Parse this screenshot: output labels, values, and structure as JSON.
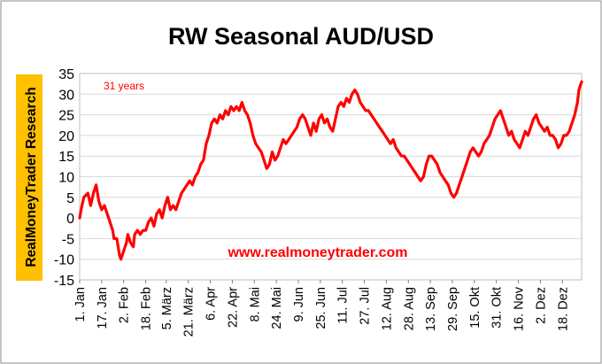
{
  "chart_data": {
    "type": "line",
    "title": "RW Seasonal AUD/USD",
    "ylabel": "RealMoneyTrader Research",
    "annotation": "31 years",
    "watermark": "www.realmoneytrader.com",
    "ylim": [
      -15,
      35
    ],
    "yticks": [
      -15,
      -10,
      -5,
      0,
      5,
      10,
      15,
      20,
      25,
      30,
      35
    ],
    "xlim": [
      1,
      366
    ],
    "xticks": [
      {
        "day": 1,
        "label": "1. Jan"
      },
      {
        "day": 17,
        "label": "17. Jan"
      },
      {
        "day": 33,
        "label": "2. Feb"
      },
      {
        "day": 49,
        "label": "18. Feb"
      },
      {
        "day": 64,
        "label": "5. März"
      },
      {
        "day": 80,
        "label": "21. März"
      },
      {
        "day": 96,
        "label": "6. Apr"
      },
      {
        "day": 112,
        "label": "22. Apr"
      },
      {
        "day": 128,
        "label": "8. Mai"
      },
      {
        "day": 144,
        "label": "24. Mai"
      },
      {
        "day": 160,
        "label": "9. Jun"
      },
      {
        "day": 176,
        "label": "25. Jun"
      },
      {
        "day": 192,
        "label": "11. Jul"
      },
      {
        "day": 208,
        "label": "27. Jul"
      },
      {
        "day": 224,
        "label": "12. Aug"
      },
      {
        "day": 240,
        "label": "28. Aug"
      },
      {
        "day": 256,
        "label": "13. Sep"
      },
      {
        "day": 272,
        "label": "29. Sep"
      },
      {
        "day": 288,
        "label": "15. Okt"
      },
      {
        "day": 304,
        "label": "31. Okt"
      },
      {
        "day": 320,
        "label": "16. Nov"
      },
      {
        "day": 336,
        "label": "2. Dez"
      },
      {
        "day": 352,
        "label": "18. Dez"
      }
    ],
    "grid": true,
    "series": [
      {
        "color": "#ff0000",
        "points": [
          [
            1,
            0
          ],
          [
            2,
            2
          ],
          [
            4,
            5
          ],
          [
            7,
            6
          ],
          [
            9,
            3
          ],
          [
            11,
            6
          ],
          [
            13,
            8
          ],
          [
            15,
            4
          ],
          [
            17,
            2
          ],
          [
            19,
            3
          ],
          [
            21,
            1
          ],
          [
            23,
            -1
          ],
          [
            25,
            -3
          ],
          [
            26,
            -5
          ],
          [
            28,
            -5
          ],
          [
            30,
            -9
          ],
          [
            31,
            -10
          ],
          [
            33,
            -8
          ],
          [
            35,
            -6
          ],
          [
            36,
            -4
          ],
          [
            38,
            -6
          ],
          [
            40,
            -7
          ],
          [
            41,
            -4
          ],
          [
            43,
            -3
          ],
          [
            45,
            -4
          ],
          [
            47,
            -3
          ],
          [
            49,
            -3
          ],
          [
            51,
            -1
          ],
          [
            53,
            0
          ],
          [
            55,
            -2
          ],
          [
            57,
            1
          ],
          [
            59,
            2
          ],
          [
            61,
            0
          ],
          [
            63,
            3
          ],
          [
            65,
            5
          ],
          [
            67,
            2
          ],
          [
            69,
            3
          ],
          [
            71,
            2
          ],
          [
            73,
            4
          ],
          [
            75,
            6
          ],
          [
            77,
            7
          ],
          [
            79,
            8
          ],
          [
            81,
            9
          ],
          [
            83,
            8
          ],
          [
            85,
            10
          ],
          [
            87,
            11
          ],
          [
            89,
            13
          ],
          [
            91,
            14
          ],
          [
            93,
            18
          ],
          [
            95,
            20
          ],
          [
            97,
            23
          ],
          [
            99,
            24
          ],
          [
            101,
            23
          ],
          [
            103,
            25
          ],
          [
            105,
            24
          ],
          [
            107,
            26
          ],
          [
            109,
            25
          ],
          [
            111,
            27
          ],
          [
            113,
            26
          ],
          [
            115,
            27
          ],
          [
            117,
            26
          ],
          [
            119,
            28
          ],
          [
            121,
            26
          ],
          [
            123,
            25
          ],
          [
            125,
            23
          ],
          [
            127,
            20
          ],
          [
            129,
            18
          ],
          [
            131,
            17
          ],
          [
            133,
            16
          ],
          [
            135,
            14
          ],
          [
            137,
            12
          ],
          [
            139,
            13
          ],
          [
            141,
            16
          ],
          [
            143,
            14
          ],
          [
            145,
            15
          ],
          [
            147,
            17
          ],
          [
            149,
            19
          ],
          [
            151,
            18
          ],
          [
            153,
            19
          ],
          [
            155,
            20
          ],
          [
            157,
            21
          ],
          [
            159,
            22
          ],
          [
            161,
            24
          ],
          [
            163,
            25
          ],
          [
            165,
            24
          ],
          [
            167,
            22
          ],
          [
            169,
            20
          ],
          [
            171,
            23
          ],
          [
            173,
            21
          ],
          [
            175,
            24
          ],
          [
            177,
            25
          ],
          [
            179,
            23
          ],
          [
            181,
            24
          ],
          [
            183,
            22
          ],
          [
            185,
            21
          ],
          [
            187,
            24
          ],
          [
            189,
            27
          ],
          [
            191,
            28
          ],
          [
            193,
            27
          ],
          [
            195,
            29
          ],
          [
            197,
            28
          ],
          [
            199,
            30
          ],
          [
            201,
            31
          ],
          [
            203,
            30
          ],
          [
            205,
            28
          ],
          [
            207,
            27
          ],
          [
            209,
            26
          ],
          [
            211,
            26
          ],
          [
            213,
            25
          ],
          [
            215,
            24
          ],
          [
            217,
            23
          ],
          [
            219,
            22
          ],
          [
            221,
            21
          ],
          [
            223,
            20
          ],
          [
            225,
            19
          ],
          [
            227,
            18
          ],
          [
            229,
            19
          ],
          [
            231,
            17
          ],
          [
            233,
            16
          ],
          [
            235,
            15
          ],
          [
            237,
            15
          ],
          [
            239,
            14
          ],
          [
            241,
            13
          ],
          [
            243,
            12
          ],
          [
            245,
            11
          ],
          [
            247,
            10
          ],
          [
            249,
            9
          ],
          [
            251,
            10
          ],
          [
            253,
            13
          ],
          [
            255,
            15
          ],
          [
            257,
            15
          ],
          [
            259,
            14
          ],
          [
            261,
            13
          ],
          [
            263,
            11
          ],
          [
            265,
            10
          ],
          [
            267,
            9
          ],
          [
            269,
            8
          ],
          [
            271,
            6
          ],
          [
            273,
            5
          ],
          [
            275,
            6
          ],
          [
            277,
            8
          ],
          [
            279,
            10
          ],
          [
            281,
            12
          ],
          [
            283,
            14
          ],
          [
            285,
            16
          ],
          [
            287,
            17
          ],
          [
            289,
            16
          ],
          [
            291,
            15
          ],
          [
            293,
            16
          ],
          [
            295,
            18
          ],
          [
            297,
            19
          ],
          [
            299,
            20
          ],
          [
            301,
            22
          ],
          [
            303,
            24
          ],
          [
            305,
            25
          ],
          [
            307,
            26
          ],
          [
            309,
            24
          ],
          [
            311,
            22
          ],
          [
            313,
            20
          ],
          [
            315,
            21
          ],
          [
            317,
            19
          ],
          [
            319,
            18
          ],
          [
            321,
            17
          ],
          [
            323,
            19
          ],
          [
            325,
            21
          ],
          [
            327,
            20
          ],
          [
            329,
            22
          ],
          [
            331,
            24
          ],
          [
            333,
            25
          ],
          [
            335,
            23
          ],
          [
            337,
            22
          ],
          [
            339,
            21
          ],
          [
            341,
            22
          ],
          [
            343,
            20
          ],
          [
            345,
            20
          ],
          [
            347,
            19
          ],
          [
            349,
            17
          ],
          [
            351,
            18
          ],
          [
            353,
            20
          ],
          [
            355,
            20
          ],
          [
            357,
            21
          ],
          [
            359,
            23
          ],
          [
            361,
            25
          ],
          [
            363,
            28
          ],
          [
            364,
            31
          ],
          [
            365,
            32
          ],
          [
            366,
            33
          ]
        ]
      }
    ]
  }
}
